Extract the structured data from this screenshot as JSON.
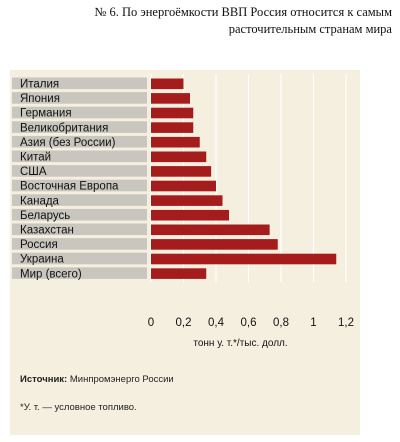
{
  "header": {
    "title_line1": "№ 6. По энергоёмкости ВВП Россия относится к самым",
    "title_line2": "расточительным странам мира"
  },
  "chart_data": {
    "type": "bar",
    "orientation": "horizontal",
    "categories": [
      "Италия",
      "Япония",
      "Германия",
      "Великобритания",
      "Азия (без России)",
      "Китай",
      "США",
      "Восточная Европа",
      "Канада",
      "Беларусь",
      "Казахстан",
      "Россия",
      "Украина",
      "Мир (всего)"
    ],
    "values": [
      0.2,
      0.24,
      0.26,
      0.26,
      0.3,
      0.34,
      0.37,
      0.4,
      0.44,
      0.48,
      0.73,
      0.78,
      1.14,
      0.34
    ],
    "xlim": [
      0,
      1.2
    ],
    "xticks": [
      "0",
      "0,2",
      "0,4",
      "0,6",
      "0,8",
      "1",
      "1,2"
    ],
    "xlabel": "тонн у. т.*/тыс. долл.",
    "bar_color": "#a51c1c",
    "grid": "vertical"
  },
  "footer": {
    "source_label": "Источник:",
    "source_value": " Минпромэнерго России",
    "note": "*У. т. —  условное топливо."
  }
}
